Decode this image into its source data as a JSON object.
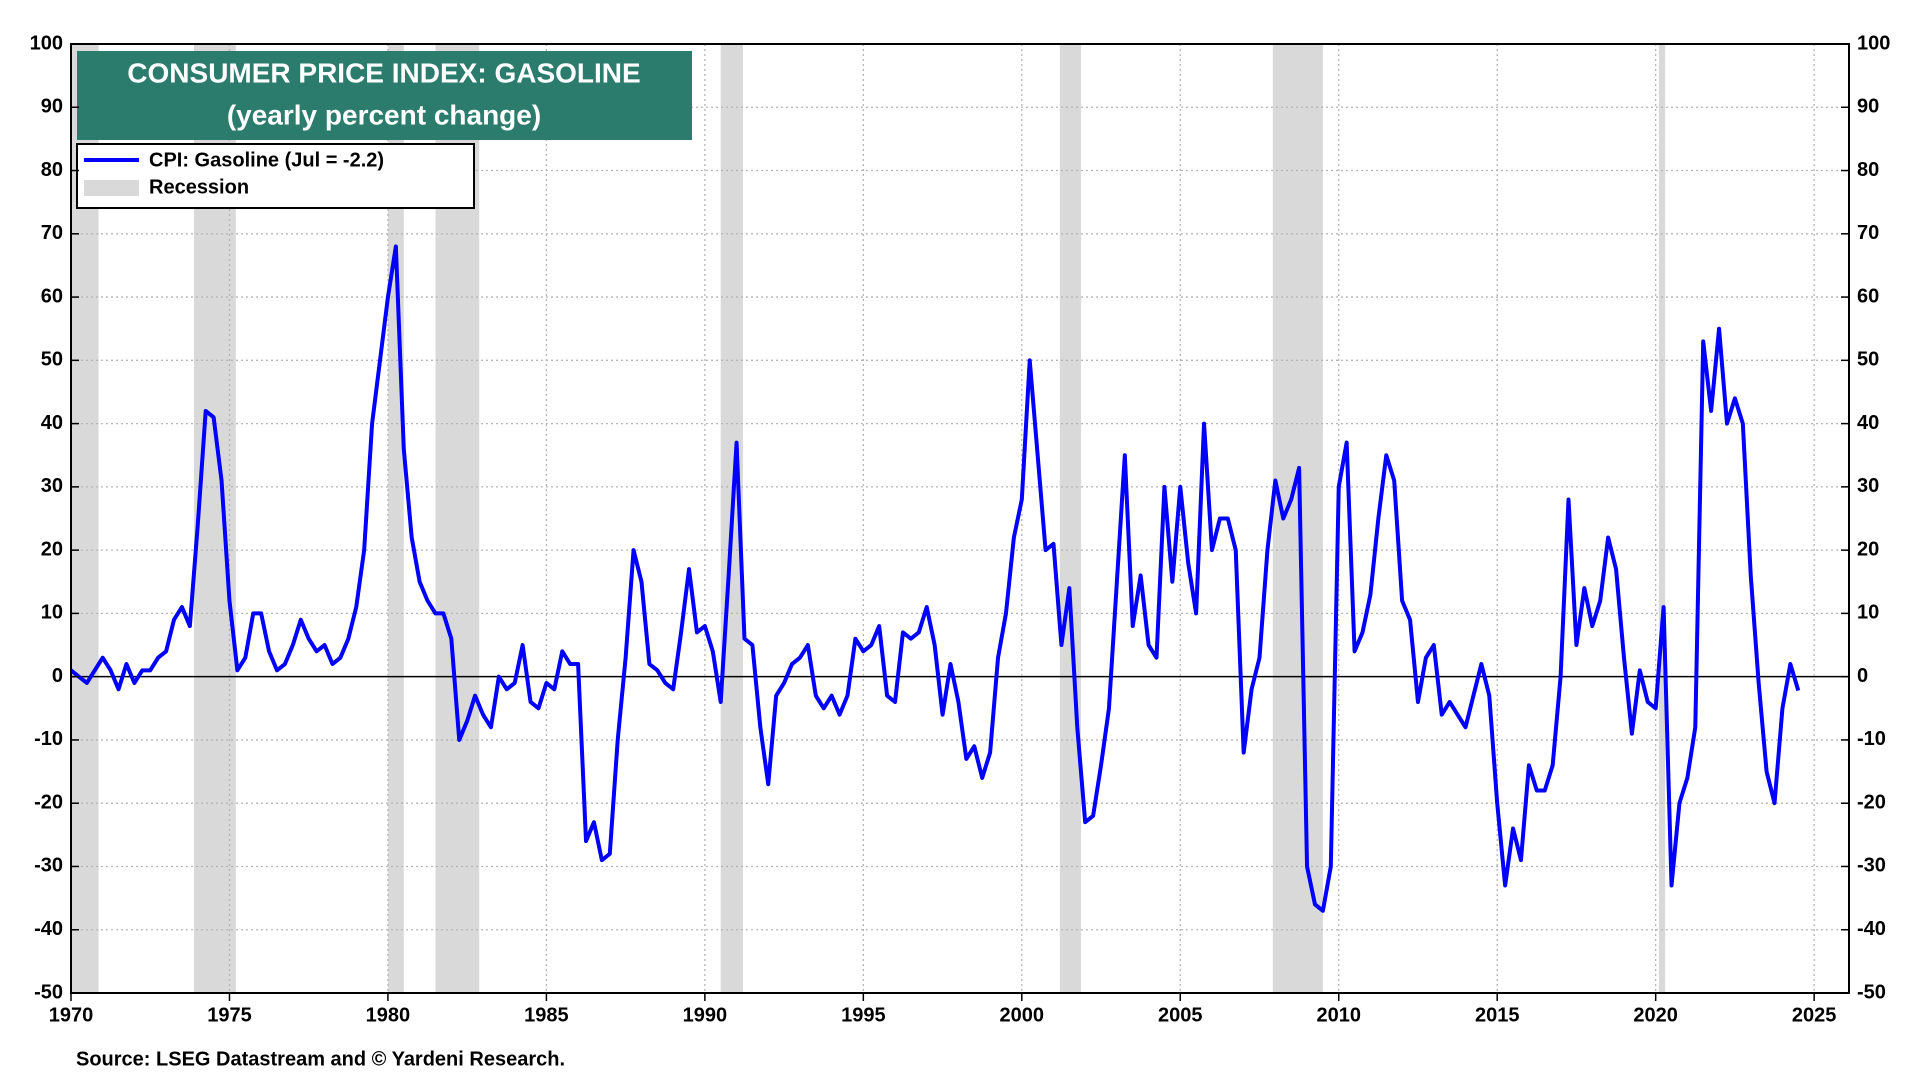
{
  "chart_data": {
    "type": "line",
    "title": "CONSUMER PRICE INDEX: GASOLINE",
    "subtitle": "(yearly percent change)",
    "source": "Source: LSEG Datastream and © Yardeni Research.",
    "xlim": [
      1970,
      2026.1
    ],
    "xticks": [
      1970,
      1975,
      1980,
      1985,
      1990,
      1995,
      2000,
      2005,
      2010,
      2015,
      2020,
      2025
    ],
    "ylim": [
      -50,
      100
    ],
    "yticks": [
      -50,
      -40,
      -30,
      -20,
      -10,
      0,
      10,
      20,
      30,
      40,
      50,
      60,
      70,
      80,
      90,
      100
    ],
    "grid": true,
    "recessions": {
      "name": "Recession",
      "color": "#d9d9d9",
      "periods": [
        [
          1969.92,
          1970.87
        ],
        [
          1973.88,
          1975.2
        ],
        [
          1980.0,
          1980.5
        ],
        [
          1981.5,
          1982.88
        ],
        [
          1990.5,
          1991.2
        ],
        [
          2001.2,
          2001.87
        ],
        [
          2007.92,
          2009.5
        ],
        [
          2020.1,
          2020.3
        ]
      ]
    },
    "series": [
      {
        "name": "CPI: Gasoline (Jul = -2.2)",
        "color": "#0000ff",
        "x": [
          1970,
          1970.25,
          1970.5,
          1970.75,
          1971,
          1971.25,
          1971.5,
          1971.75,
          1972,
          1972.25,
          1972.5,
          1972.75,
          1973,
          1973.25,
          1973.5,
          1973.75,
          1974,
          1974.25,
          1974.5,
          1974.75,
          1975,
          1975.25,
          1975.5,
          1975.75,
          1976,
          1976.25,
          1976.5,
          1976.75,
          1977,
          1977.25,
          1977.5,
          1977.75,
          1978,
          1978.25,
          1978.5,
          1978.75,
          1979,
          1979.25,
          1979.5,
          1979.75,
          1980,
          1980.25,
          1980.5,
          1980.75,
          1981,
          1981.25,
          1981.5,
          1981.75,
          1982,
          1982.25,
          1982.5,
          1982.75,
          1983,
          1983.25,
          1983.5,
          1983.75,
          1984,
          1984.25,
          1984.5,
          1984.75,
          1985,
          1985.25,
          1985.5,
          1985.75,
          1986,
          1986.25,
          1986.5,
          1986.75,
          1987,
          1987.25,
          1987.5,
          1987.75,
          1988,
          1988.25,
          1988.5,
          1988.75,
          1989,
          1989.25,
          1989.5,
          1989.75,
          1990,
          1990.25,
          1990.5,
          1990.75,
          1991,
          1991.25,
          1991.5,
          1991.75,
          1992,
          1992.25,
          1992.5,
          1992.75,
          1993,
          1993.25,
          1993.5,
          1993.75,
          1994,
          1994.25,
          1994.5,
          1994.75,
          1995,
          1995.25,
          1995.5,
          1995.75,
          1996,
          1996.25,
          1996.5,
          1996.75,
          1997,
          1997.25,
          1997.5,
          1997.75,
          1998,
          1998.25,
          1998.5,
          1998.75,
          1999,
          1999.25,
          1999.5,
          1999.75,
          2000,
          2000.25,
          2000.5,
          2000.75,
          2001,
          2001.25,
          2001.5,
          2001.75,
          2002,
          2002.25,
          2002.5,
          2002.75,
          2003,
          2003.25,
          2003.5,
          2003.75,
          2004,
          2004.25,
          2004.5,
          2004.75,
          2005,
          2005.25,
          2005.5,
          2005.75,
          2006,
          2006.25,
          2006.5,
          2006.75,
          2007,
          2007.25,
          2007.5,
          2007.75,
          2008,
          2008.25,
          2008.5,
          2008.75,
          2009,
          2009.25,
          2009.5,
          2009.75,
          2010,
          2010.25,
          2010.5,
          2010.75,
          2011,
          2011.25,
          2011.5,
          2011.75,
          2012,
          2012.25,
          2012.5,
          2012.75,
          2013,
          2013.25,
          2013.5,
          2013.75,
          2014,
          2014.25,
          2014.5,
          2014.75,
          2015,
          2015.25,
          2015.5,
          2015.75,
          2016,
          2016.25,
          2016.5,
          2016.75,
          2017,
          2017.25,
          2017.5,
          2017.75,
          2018,
          2018.25,
          2018.5,
          2018.75,
          2019,
          2019.25,
          2019.5,
          2019.75,
          2020,
          2020.25,
          2020.5,
          2020.75,
          2021,
          2021.25,
          2021.5,
          2021.75,
          2022,
          2022.25,
          2022.5,
          2022.75,
          2023,
          2023.25,
          2023.5,
          2023.75,
          2024,
          2024.25,
          2024.5
        ],
        "values": [
          1,
          0,
          -1,
          1,
          3,
          1,
          -2,
          2,
          -1,
          1,
          1,
          3,
          4,
          9,
          11,
          8,
          24,
          42,
          41,
          31,
          12,
          1,
          3,
          10,
          10,
          4,
          1,
          2,
          5,
          9,
          6,
          4,
          5,
          2,
          3,
          6,
          11,
          20,
          40,
          50,
          60,
          68,
          36,
          22,
          15,
          12,
          10,
          10,
          6,
          -10,
          -7,
          -3,
          -6,
          -8,
          0,
          -2,
          -1,
          5,
          -4,
          -5,
          -1,
          -2,
          4,
          2,
          2,
          -26,
          -23,
          -29,
          -28,
          -10,
          3,
          20,
          15,
          2,
          1,
          -1,
          -2,
          7,
          17,
          7,
          8,
          4,
          -4,
          16,
          37,
          6,
          5,
          -8,
          -17,
          -3,
          -1,
          2,
          3,
          5,
          -3,
          -5,
          -3,
          -6,
          -3,
          6,
          4,
          5,
          8,
          -3,
          -4,
          7,
          6,
          7,
          11,
          5,
          -6,
          2,
          -4,
          -13,
          -11,
          -16,
          -12,
          3,
          10,
          22,
          28,
          50,
          35,
          20,
          21,
          5,
          14,
          -8,
          -23,
          -22,
          -14,
          -5,
          15,
          35,
          8,
          16,
          5,
          3,
          30,
          15,
          30,
          18,
          10,
          40,
          20,
          25,
          25,
          20,
          -12,
          -2,
          3,
          20,
          31,
          25,
          28,
          33,
          -30,
          -36,
          -37,
          -30,
          30,
          37,
          4,
          7,
          13,
          25,
          35,
          31,
          12,
          9,
          -4,
          3,
          5,
          -6,
          -4,
          -6,
          -8,
          -3,
          2,
          -3,
          -20,
          -33,
          -24,
          -29,
          -14,
          -18,
          -18,
          -14,
          0,
          28,
          5,
          14,
          8,
          12,
          22,
          17,
          3,
          -9,
          1,
          -4,
          -5,
          11,
          -33,
          -20,
          -16,
          -8,
          53,
          42,
          55,
          40,
          44,
          40,
          16,
          -1,
          -15,
          -20,
          -5,
          2,
          -2.2
        ]
      }
    ]
  }
}
